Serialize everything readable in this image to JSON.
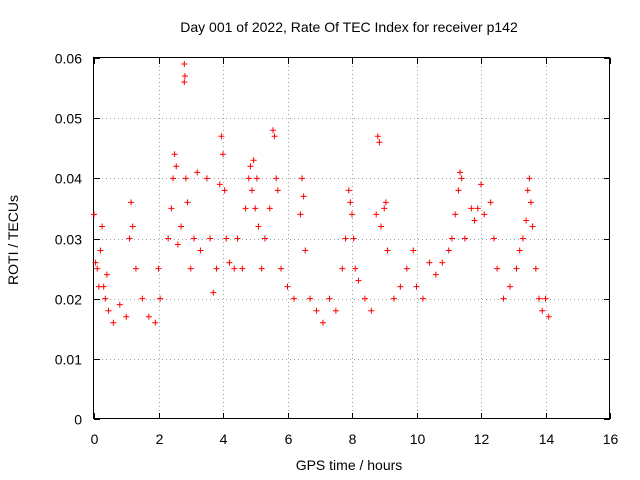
{
  "chart_data": {
    "type": "scatter",
    "title": "Day 001 of 2022, Rate Of TEC Index for receiver p142",
    "xlabel": "GPS time / hours",
    "ylabel": "ROTI / TECUs",
    "xlim": [
      0,
      16
    ],
    "ylim": [
      0,
      0.06
    ],
    "xticks": [
      0,
      2,
      4,
      6,
      8,
      10,
      12,
      14,
      16
    ],
    "yticks": [
      0,
      0.01,
      0.02,
      0.03,
      0.04,
      0.05,
      0.06
    ],
    "xtick_labels": [
      "0",
      "2",
      "4",
      "6",
      "8",
      "10",
      "12",
      "14",
      "16"
    ],
    "ytick_labels": [
      "0",
      "0.01",
      "0.02",
      "0.03",
      "0.04",
      "0.05",
      "0.06"
    ],
    "grid": true,
    "marker": "+",
    "color": "#ff0000",
    "series": [
      {
        "name": "ROTI",
        "points": [
          [
            0.0,
            0.034
          ],
          [
            0.05,
            0.026
          ],
          [
            0.1,
            0.025
          ],
          [
            0.15,
            0.022
          ],
          [
            0.2,
            0.028
          ],
          [
            0.25,
            0.032
          ],
          [
            0.3,
            0.022
          ],
          [
            0.35,
            0.02
          ],
          [
            0.4,
            0.024
          ],
          [
            0.45,
            0.018
          ],
          [
            0.6,
            0.016
          ],
          [
            0.8,
            0.019
          ],
          [
            1.0,
            0.017
          ],
          [
            1.15,
            0.036
          ],
          [
            1.1,
            0.03
          ],
          [
            1.2,
            0.032
          ],
          [
            1.3,
            0.025
          ],
          [
            1.5,
            0.02
          ],
          [
            1.7,
            0.017
          ],
          [
            1.9,
            0.016
          ],
          [
            2.0,
            0.025
          ],
          [
            2.05,
            0.02
          ],
          [
            2.3,
            0.03
          ],
          [
            2.4,
            0.035
          ],
          [
            2.45,
            0.04
          ],
          [
            2.5,
            0.044
          ],
          [
            2.55,
            0.042
          ],
          [
            2.6,
            0.029
          ],
          [
            2.7,
            0.032
          ],
          [
            2.8,
            0.059
          ],
          [
            2.82,
            0.057
          ],
          [
            2.8,
            0.056
          ],
          [
            2.85,
            0.04
          ],
          [
            2.9,
            0.036
          ],
          [
            3.0,
            0.025
          ],
          [
            3.1,
            0.03
          ],
          [
            3.2,
            0.041
          ],
          [
            3.3,
            0.028
          ],
          [
            3.5,
            0.04
          ],
          [
            3.6,
            0.03
          ],
          [
            3.7,
            0.021
          ],
          [
            3.8,
            0.025
          ],
          [
            3.9,
            0.039
          ],
          [
            3.95,
            0.047
          ],
          [
            4.0,
            0.044
          ],
          [
            4.05,
            0.038
          ],
          [
            4.1,
            0.03
          ],
          [
            4.2,
            0.026
          ],
          [
            4.35,
            0.025
          ],
          [
            4.45,
            0.03
          ],
          [
            4.6,
            0.025
          ],
          [
            4.7,
            0.035
          ],
          [
            4.8,
            0.04
          ],
          [
            4.85,
            0.042
          ],
          [
            4.9,
            0.038
          ],
          [
            4.95,
            0.043
          ],
          [
            5.0,
            0.035
          ],
          [
            5.05,
            0.04
          ],
          [
            5.1,
            0.032
          ],
          [
            5.2,
            0.025
          ],
          [
            5.3,
            0.03
          ],
          [
            5.45,
            0.035
          ],
          [
            5.55,
            0.048
          ],
          [
            5.6,
            0.047
          ],
          [
            5.65,
            0.04
          ],
          [
            5.7,
            0.038
          ],
          [
            5.8,
            0.025
          ],
          [
            6.0,
            0.022
          ],
          [
            6.2,
            0.02
          ],
          [
            6.4,
            0.034
          ],
          [
            6.45,
            0.04
          ],
          [
            6.5,
            0.037
          ],
          [
            6.55,
            0.028
          ],
          [
            6.7,
            0.02
          ],
          [
            6.9,
            0.018
          ],
          [
            7.1,
            0.016
          ],
          [
            7.3,
            0.02
          ],
          [
            7.5,
            0.018
          ],
          [
            7.7,
            0.025
          ],
          [
            7.8,
            0.03
          ],
          [
            7.9,
            0.038
          ],
          [
            7.95,
            0.036
          ],
          [
            8.0,
            0.034
          ],
          [
            8.05,
            0.03
          ],
          [
            8.1,
            0.025
          ],
          [
            8.2,
            0.023
          ],
          [
            8.4,
            0.02
          ],
          [
            8.6,
            0.018
          ],
          [
            8.8,
            0.047
          ],
          [
            8.85,
            0.046
          ],
          [
            8.75,
            0.034
          ],
          [
            8.9,
            0.032
          ],
          [
            9.0,
            0.035
          ],
          [
            9.05,
            0.036
          ],
          [
            9.1,
            0.028
          ],
          [
            9.3,
            0.02
          ],
          [
            9.5,
            0.022
          ],
          [
            9.7,
            0.025
          ],
          [
            9.9,
            0.028
          ],
          [
            10.0,
            0.022
          ],
          [
            10.2,
            0.02
          ],
          [
            10.4,
            0.026
          ],
          [
            10.6,
            0.024
          ],
          [
            10.8,
            0.026
          ],
          [
            11.0,
            0.028
          ],
          [
            11.1,
            0.03
          ],
          [
            11.2,
            0.034
          ],
          [
            11.3,
            0.038
          ],
          [
            11.35,
            0.041
          ],
          [
            11.4,
            0.04
          ],
          [
            11.5,
            0.03
          ],
          [
            11.7,
            0.035
          ],
          [
            11.8,
            0.033
          ],
          [
            11.9,
            0.035
          ],
          [
            12.0,
            0.039
          ],
          [
            12.1,
            0.034
          ],
          [
            12.3,
            0.036
          ],
          [
            12.4,
            0.03
          ],
          [
            12.5,
            0.025
          ],
          [
            12.7,
            0.02
          ],
          [
            12.9,
            0.022
          ],
          [
            13.1,
            0.025
          ],
          [
            13.2,
            0.028
          ],
          [
            13.3,
            0.03
          ],
          [
            13.4,
            0.033
          ],
          [
            13.45,
            0.038
          ],
          [
            13.5,
            0.04
          ],
          [
            13.55,
            0.036
          ],
          [
            13.6,
            0.032
          ],
          [
            13.7,
            0.025
          ],
          [
            13.8,
            0.02
          ],
          [
            13.9,
            0.018
          ],
          [
            14.0,
            0.02
          ],
          [
            14.1,
            0.017
          ]
        ]
      }
    ]
  }
}
